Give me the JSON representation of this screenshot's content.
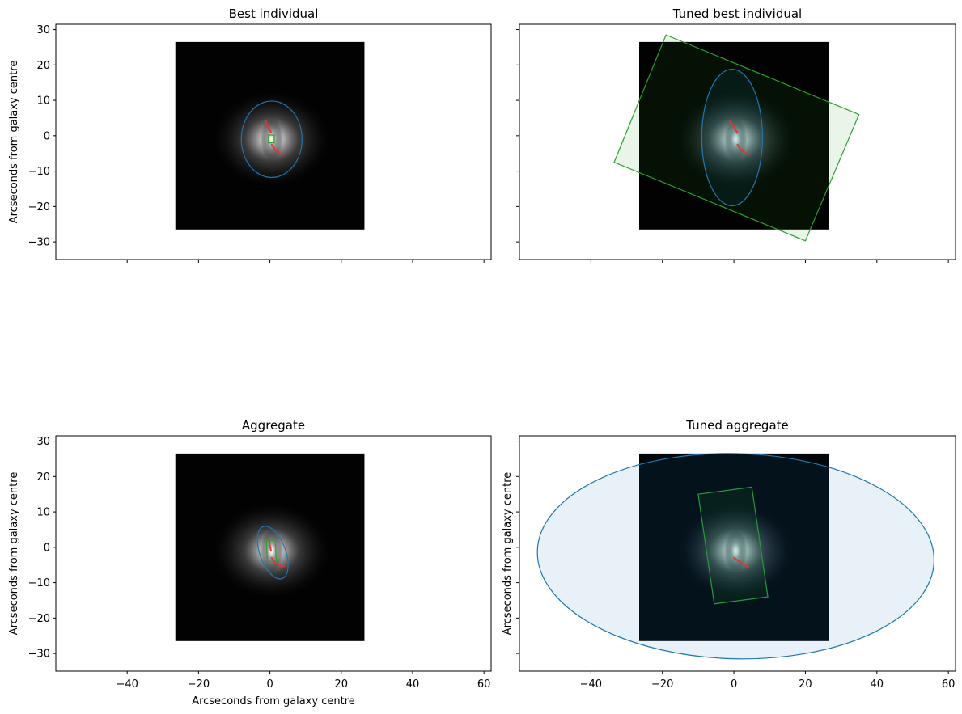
{
  "chart_data": [
    {
      "type": "image",
      "title": "Best individual",
      "xlabel": "",
      "ylabel": "Arcseconds from galaxy centre",
      "xlim": [
        -60,
        62
      ],
      "ylim": [
        -35,
        31.5
      ],
      "xticks": [
        -40,
        -20,
        0,
        20,
        40,
        60
      ],
      "yticks": [
        -30,
        -20,
        -10,
        0,
        10,
        20,
        30
      ],
      "show_xticklabels": false,
      "show_yticklabels": true,
      "image_extent": [
        -26.5,
        26.5,
        -26.5,
        26.5
      ],
      "galaxy_ellipse": {
        "cx": 0.5,
        "cy": -1,
        "rx": 8.5,
        "ry": 10.8,
        "angle": 0
      },
      "bar_box": [
        [
          -0.4,
          0.2
        ],
        [
          1.2,
          0.2
        ],
        [
          1.2,
          -2.0
        ],
        [
          -0.4,
          -2.0
        ]
      ],
      "arms": [
        [
          [
            -1.2,
            4.2
          ],
          [
            -0.5,
            2.5
          ],
          [
            0.3,
            1.0
          ]
        ],
        [
          [
            0.5,
            -2.5
          ],
          [
            1.5,
            -4.0
          ],
          [
            3.0,
            -5.0
          ],
          [
            4.0,
            -5.2
          ]
        ]
      ]
    },
    {
      "type": "image",
      "title": "Tuned best individual",
      "xlabel": "",
      "ylabel": "",
      "xlim": [
        -60,
        62
      ],
      "ylim": [
        -35,
        31.5
      ],
      "xticks": [
        -40,
        -20,
        0,
        20,
        40,
        60
      ],
      "yticks": [
        -30,
        -20,
        -10,
        0,
        10,
        20,
        30
      ],
      "show_xticklabels": false,
      "show_yticklabels": false,
      "image_extent": [
        -26.5,
        26.5,
        -26.5,
        26.5
      ],
      "galaxy_ellipse": {
        "cx": -0.5,
        "cy": -0.5,
        "rx": 8.5,
        "ry": 19.3,
        "angle": 0
      },
      "bar_box": [
        [
          -19,
          28.5
        ],
        [
          35,
          6
        ],
        [
          20,
          -29.7
        ],
        [
          -33.5,
          -7.5
        ]
      ],
      "arms": [
        [
          [
            -1.0,
            4.0
          ],
          [
            0.0,
            2.5
          ],
          [
            1.0,
            0.8
          ]
        ],
        [
          [
            1.0,
            -2.5
          ],
          [
            2.0,
            -4.0
          ],
          [
            3.5,
            -5.0
          ],
          [
            4.5,
            -5.2
          ]
        ]
      ]
    },
    {
      "type": "image",
      "title": "Aggregate",
      "xlabel": "Arcseconds from galaxy centre",
      "ylabel": "Arcseconds from galaxy centre",
      "xlim": [
        -60,
        62
      ],
      "ylim": [
        -35,
        31.5
      ],
      "xticks": [
        -40,
        -20,
        0,
        20,
        40,
        60
      ],
      "yticks": [
        -30,
        -20,
        -10,
        0,
        10,
        20,
        30
      ],
      "show_xticklabels": true,
      "show_yticklabels": true,
      "image_extent": [
        -26.5,
        26.5,
        -26.5,
        26.5
      ],
      "galaxy_ellipse": {
        "cx": 0.8,
        "cy": -1.5,
        "rx": 3.6,
        "ry": 7.8,
        "angle": -20
      },
      "bar_box": [
        [
          -1.0,
          2.0
        ],
        [
          1.5,
          2.0
        ],
        [
          1.8,
          -4.0
        ],
        [
          -0.7,
          -4.0
        ]
      ],
      "arms": [
        [
          [
            -0.2,
            2.0
          ],
          [
            0.0,
            0.5
          ],
          [
            0.3,
            -1.0
          ]
        ],
        [
          [
            0.5,
            -3.0
          ],
          [
            1.5,
            -4.5
          ],
          [
            3.0,
            -5.2
          ],
          [
            4.0,
            -5.3
          ]
        ]
      ]
    },
    {
      "type": "image",
      "title": "Tuned aggregate",
      "xlabel": "",
      "ylabel": "Arcseconds from galaxy centre",
      "xlim": [
        -60,
        62
      ],
      "ylim": [
        -35,
        31.5
      ],
      "xticks": [
        -40,
        -20,
        0,
        20,
        40,
        60
      ],
      "yticks": [
        -30,
        -20,
        -10,
        0,
        10,
        20,
        30
      ],
      "show_xticklabels": true,
      "show_yticklabels": false,
      "image_extent": [
        -26.5,
        26.5,
        -26.5,
        26.5
      ],
      "galaxy_ellipse": {
        "cx": 0.5,
        "cy": -2.5,
        "rx": 55.5,
        "ry": 29,
        "angle": 1.5
      },
      "bar_box": [
        [
          -10,
          15
        ],
        [
          5,
          17
        ],
        [
          9.5,
          -14
        ],
        [
          -5.5,
          -16
        ]
      ],
      "arms": [
        [
          [
            0.0,
            -3.0
          ],
          [
            1.5,
            -4.0
          ],
          [
            3.0,
            -5.0
          ],
          [
            4.0,
            -5.5
          ]
        ]
      ]
    }
  ]
}
